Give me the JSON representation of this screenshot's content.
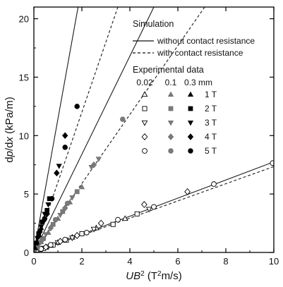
{
  "chart_data": {
    "type": "scatter",
    "xlabel": {
      "pre": "UB",
      "sup": "2",
      "post": " (T",
      "sup2": "2",
      "post2": "m/s)"
    },
    "ylabel": {
      "pre": "d",
      "it1": "p",
      "mid": "/d",
      "it2": "x",
      "post": " (kPa/m)"
    },
    "xlim": [
      0,
      10
    ],
    "ylim": [
      0,
      21
    ],
    "xticks": [
      0,
      2,
      4,
      6,
      8,
      10
    ],
    "yticks": [
      0,
      5,
      10,
      15,
      20
    ],
    "x_tick_labels": [
      "0",
      "2",
      "4",
      "6",
      "8",
      "10"
    ],
    "y_tick_labels": [
      "0",
      "5",
      "10",
      "15",
      "20"
    ],
    "grid": false,
    "legend": {
      "simulation_title": "Simulation",
      "sim_without": "without contact resistance",
      "sim_with": "with contact resistance",
      "experimental_title": "Experimental data",
      "sizes": [
        "0.02",
        "0.1",
        "0.3 mm"
      ],
      "fields": [
        "1 T",
        "2 T",
        "3 T",
        "4 T",
        "5 T"
      ],
      "placement": "upper-right"
    },
    "simulation_lines": [
      {
        "name": "0.02 mm",
        "style": "solid",
        "slope": 0.775
      },
      {
        "name": "0.02 mm",
        "style": "dashed",
        "slope": 0.735
      },
      {
        "name": "0.1 mm",
        "style": "solid",
        "slope": 4.2
      },
      {
        "name": "0.1 mm",
        "style": "dashed",
        "slope": 2.95
      },
      {
        "name": "0.3 mm",
        "style": "solid",
        "slope": 11.4
      },
      {
        "name": "0.3 mm",
        "style": "dashed",
        "slope": 6.0
      }
    ],
    "series": [
      {
        "size": "0.02",
        "field": "1 T",
        "marker": "triangle",
        "fill": "open",
        "points": [
          [
            0.05,
            0.1
          ],
          [
            0.1,
            0.15
          ],
          [
            0.25,
            0.25
          ],
          [
            0.5,
            0.45
          ],
          [
            0.7,
            0.6
          ],
          [
            1.0,
            0.85
          ],
          [
            1.6,
            1.3
          ],
          [
            2.6,
            2.1
          ],
          [
            3.8,
            2.9
          ]
        ]
      },
      {
        "size": "0.02",
        "field": "2 T",
        "marker": "square",
        "fill": "open",
        "points": [
          [
            0.15,
            0.2
          ],
          [
            0.4,
            0.35
          ],
          [
            0.8,
            0.65
          ],
          [
            1.35,
            1.05
          ],
          [
            2.0,
            1.6
          ],
          [
            3.3,
            2.4
          ],
          [
            4.3,
            3.3
          ]
        ]
      },
      {
        "size": "0.02",
        "field": "3 T",
        "marker": "triangle-down",
        "fill": "open",
        "points": [
          [
            0.3,
            0.3
          ],
          [
            0.6,
            0.5
          ],
          [
            1.0,
            0.85
          ],
          [
            1.6,
            1.25
          ],
          [
            2.5,
            2.0
          ],
          [
            4.8,
            3.7
          ]
        ]
      },
      {
        "size": "0.02",
        "field": "4 T",
        "marker": "diamond",
        "fill": "open",
        "points": [
          [
            0.2,
            0.25
          ],
          [
            0.5,
            0.45
          ],
          [
            1.1,
            0.95
          ],
          [
            1.8,
            1.45
          ],
          [
            2.8,
            2.5
          ],
          [
            4.6,
            4.1
          ],
          [
            6.4,
            5.2
          ]
        ]
      },
      {
        "size": "0.02",
        "field": "5 T",
        "marker": "circle",
        "fill": "open",
        "points": [
          [
            0.1,
            0.15
          ],
          [
            0.3,
            0.3
          ],
          [
            0.7,
            0.65
          ],
          [
            1.3,
            1.1
          ],
          [
            2.2,
            1.7
          ],
          [
            3.5,
            2.8
          ],
          [
            5.0,
            3.9
          ],
          [
            7.5,
            5.85
          ],
          [
            9.95,
            7.65
          ]
        ]
      },
      {
        "size": "0.1",
        "field": "1 T",
        "marker": "triangle",
        "fill": "gray",
        "points": [
          [
            0.1,
            0.35
          ],
          [
            0.3,
            0.9
          ],
          [
            0.6,
            1.7
          ],
          [
            1.0,
            2.9
          ],
          [
            1.5,
            4.3
          ],
          [
            2.0,
            5.6
          ]
        ]
      },
      {
        "size": "0.1",
        "field": "2 T",
        "marker": "square",
        "fill": "gray",
        "points": [
          [
            0.15,
            0.5
          ],
          [
            0.4,
            1.2
          ],
          [
            0.8,
            2.4
          ],
          [
            1.2,
            3.5
          ],
          [
            1.8,
            5.2
          ]
        ]
      },
      {
        "size": "0.1",
        "field": "3 T",
        "marker": "triangle-down",
        "fill": "gray",
        "points": [
          [
            0.2,
            0.65
          ],
          [
            0.5,
            1.55
          ],
          [
            1.1,
            3.2
          ],
          [
            1.6,
            4.7
          ],
          [
            2.4,
            7.3
          ],
          [
            2.7,
            8.0
          ]
        ]
      },
      {
        "size": "0.1",
        "field": "4 T",
        "marker": "diamond",
        "fill": "gray",
        "points": [
          [
            0.05,
            0.2
          ],
          [
            0.25,
            0.85
          ],
          [
            0.7,
            2.1
          ],
          [
            1.3,
            3.8
          ],
          [
            2.5,
            7.5
          ]
        ]
      },
      {
        "size": "0.1",
        "field": "5 T",
        "marker": "circle",
        "fill": "gray",
        "points": [
          [
            0.1,
            0.4
          ],
          [
            0.35,
            1.1
          ],
          [
            0.9,
            2.8
          ],
          [
            1.4,
            4.2
          ],
          [
            3.7,
            11.4
          ]
        ]
      },
      {
        "size": "0.3",
        "field": "1 T",
        "marker": "triangle",
        "fill": "black",
        "points": [
          [
            0.05,
            0.4
          ],
          [
            0.12,
            0.9
          ],
          [
            0.2,
            1.5
          ],
          [
            0.3,
            2.1
          ]
        ]
      },
      {
        "size": "0.3",
        "field": "2 T",
        "marker": "square",
        "fill": "black",
        "points": [
          [
            0.1,
            0.8
          ],
          [
            0.2,
            1.6
          ],
          [
            0.35,
            2.6
          ],
          [
            0.55,
            3.6
          ],
          [
            0.65,
            4.6
          ]
        ]
      },
      {
        "size": "0.3",
        "field": "3 T",
        "marker": "triangle-down",
        "fill": "black",
        "points": [
          [
            0.15,
            1.2
          ],
          [
            0.3,
            2.2
          ],
          [
            0.45,
            3.3
          ],
          [
            0.6,
            4.1
          ],
          [
            1.05,
            7.4
          ]
        ]
      },
      {
        "size": "0.3",
        "field": "4 T",
        "marker": "diamond",
        "fill": "black",
        "points": [
          [
            0.2,
            1.4
          ],
          [
            0.4,
            2.7
          ],
          [
            0.55,
            3.3
          ],
          [
            0.95,
            6.8
          ],
          [
            1.3,
            10.0
          ]
        ]
      },
      {
        "size": "0.3",
        "field": "5 T",
        "marker": "circle",
        "fill": "black",
        "points": [
          [
            0.25,
            1.8
          ],
          [
            0.45,
            2.9
          ],
          [
            0.75,
            4.6
          ],
          [
            1.3,
            9.0
          ],
          [
            1.8,
            12.5
          ]
        ]
      }
    ]
  }
}
